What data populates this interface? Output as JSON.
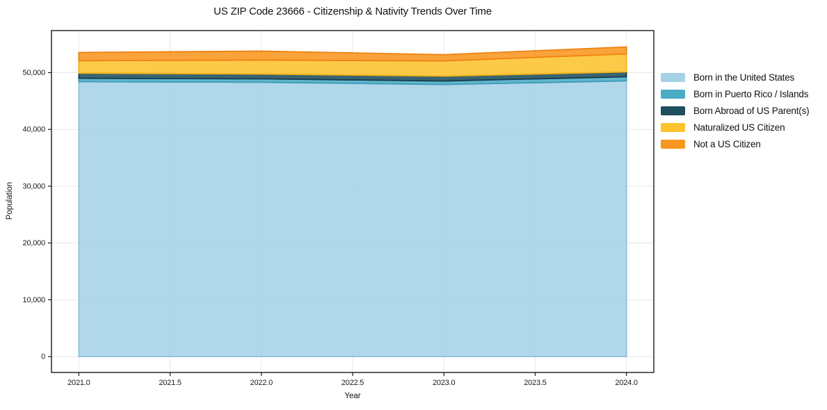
{
  "chart_data": {
    "type": "area",
    "stacked": true,
    "title": "US ZIP Code 23666 - Citizenship & Nativity Trends Over Time",
    "xlabel": "Year",
    "ylabel": "Population",
    "x": [
      2021,
      2022,
      2023,
      2024
    ],
    "x_ticks": [
      2021.0,
      2021.5,
      2022.0,
      2022.5,
      2023.0,
      2023.5,
      2024.0
    ],
    "x_tick_labels": [
      "2021.0",
      "2021.5",
      "2022.0",
      "2022.5",
      "2023.0",
      "2023.5",
      "2024.0"
    ],
    "y_ticks": [
      0,
      10000,
      20000,
      30000,
      40000,
      50000
    ],
    "y_tick_labels": [
      "0",
      "10,000",
      "20,000",
      "30,000",
      "40,000",
      "50,000"
    ],
    "xlim": [
      2020.85,
      2024.15
    ],
    "ylim": [
      -2800,
      57400
    ],
    "grid": true,
    "grid_color": "#e7e7e7",
    "spine_color": "#1a1a1a",
    "background_color": "#ffffff",
    "legend_position": "right-outside",
    "series": [
      {
        "name": "Born in the United States",
        "color": "#a6d2e8",
        "edge_color": "#8cc2de",
        "values": [
          48400,
          48300,
          47900,
          48540
        ]
      },
      {
        "name": "Born in Puerto Rico / Islands",
        "color": "#4bacc6",
        "edge_color": "#3c9bb6",
        "values": [
          600,
          600,
          620,
          730
        ]
      },
      {
        "name": "Born Abroad of US Parent(s)",
        "color": "#1f4e5f",
        "edge_color": "#16404f",
        "values": [
          900,
          850,
          860,
          850
        ]
      },
      {
        "name": "Naturalized US Citizen",
        "color": "#fdc32e",
        "edge_color": "#f3b217",
        "values": [
          2200,
          2450,
          2680,
          3170
        ]
      },
      {
        "name": "Not a US Citizen",
        "color": "#f8961f",
        "edge_color": "#ee8213",
        "values": [
          1450,
          1580,
          1100,
          1230
        ]
      }
    ],
    "totals": [
      53550,
      53780,
      53160,
      54520
    ]
  }
}
